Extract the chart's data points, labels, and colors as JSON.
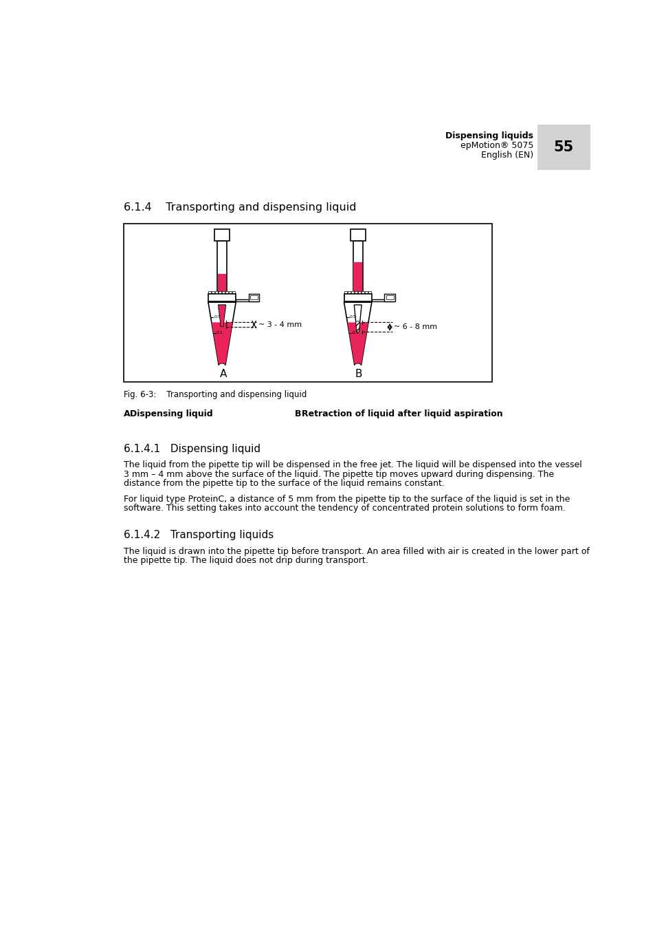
{
  "page_title": "Dispensing liquids",
  "page_subtitle": "epMotion® 5075",
  "page_lang": "English (EN)",
  "page_number": "55",
  "section_title": "6.1.4    Transporting and dispensing liquid",
  "fig_caption": "Fig. 6-3:    Transporting and dispensing liquid",
  "label_A_bold": "A  Dispensing liquid",
  "label_B_bold": "B  Retraction of liquid after liquid aspiration",
  "sub_section1": "6.1.4.1   Dispensing liquid",
  "para1_line1": "The liquid from the pipette tip will be dispensed in the free jet. The liquid will be dispensed into the vessel",
  "para1_line2": "3 mm – 4 mm above the surface of the liquid. The pipette tip moves upward during dispensing. The",
  "para1_line3": "distance from the pipette tip to the surface of the liquid remains constant.",
  "para2_line1": "For liquid type ProteinC, a distance of 5 mm from the pipette tip to the surface of the liquid is set in the",
  "para2_line2": "software. This setting takes into account the tendency of concentrated protein solutions to form foam.",
  "sub_section2": "6.1.4.2   Transporting liquids",
  "para3_line1": "The liquid is drawn into the pipette tip before transport. An area filled with air is created in the lower part of",
  "para3_line2": "the pipette tip. The liquid does not drip during transport.",
  "dim_label_A": "~ 3 - 4 mm",
  "dim_label_B": "~ 6 - 8 mm",
  "pink_color": "#E8245A",
  "bg_color": "#FFFFFF",
  "text_color": "#000000",
  "header_gray": "#D3D3D3"
}
